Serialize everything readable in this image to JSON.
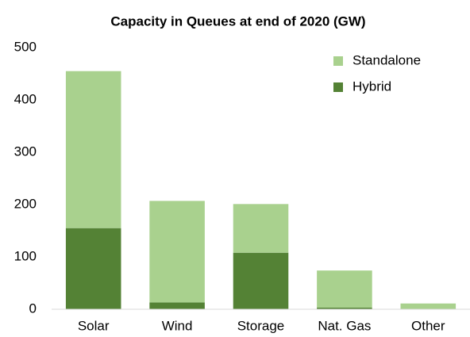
{
  "chart_data": {
    "type": "stacked_bar",
    "title": "Capacity in Queues at end of 2020 (GW)",
    "categories": [
      "Solar",
      "Wind",
      "Storage",
      "Nat. Gas",
      "Other"
    ],
    "series": [
      {
        "name": "Hybrid",
        "color": "#548235",
        "values": [
          155,
          13,
          108,
          3,
          0
        ]
      },
      {
        "name": "Standalone",
        "color": "#a9d18e",
        "values": [
          300,
          194,
          93,
          71,
          11
        ]
      }
    ],
    "ylim": [
      0,
      500
    ],
    "yticks": [
      0,
      100,
      200,
      300,
      400,
      500
    ],
    "grid": false,
    "legend": "top-right"
  }
}
